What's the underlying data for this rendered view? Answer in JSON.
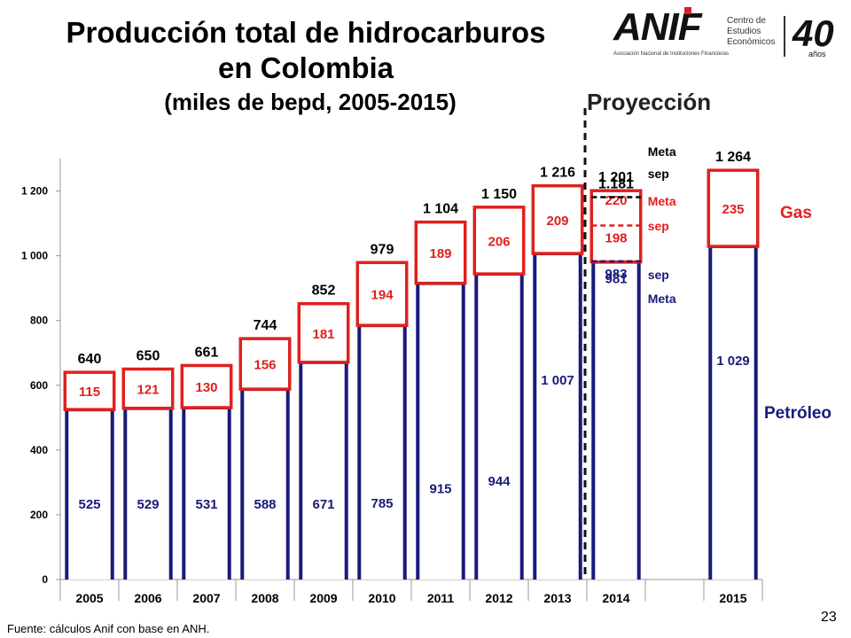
{
  "header": {
    "title_line1": "Producción total de hidrocarburos",
    "title_line2": "en Colombia",
    "subtitle": "(miles de bepd, 2005-2015)",
    "projection_label": "Proyección"
  },
  "logo": {
    "brand": "ANIF",
    "subtitle": "Asociación Nacional de Instituciones Financieras",
    "center_name": "Centro de Estudios Económicos",
    "anniversary": "40",
    "anniversary_unit": "años"
  },
  "footer": {
    "source": "Fuente: cálculos Anif con base en ANH.",
    "page_number": "23"
  },
  "chart_data": {
    "type": "bar",
    "stacked": true,
    "categories": [
      "2005",
      "2006",
      "2007",
      "2008",
      "2009",
      "2010",
      "2011",
      "2012",
      "2013",
      "2014",
      "",
      "2015"
    ],
    "ylim": [
      0,
      1300
    ],
    "yticks": [
      0,
      200,
      400,
      600,
      800,
      1000,
      1200
    ],
    "ytick_labels": [
      "0",
      "200",
      "400",
      "600",
      "800",
      "1 000",
      "1 200"
    ],
    "series": [
      {
        "name": "Petróleo",
        "color": "#1a1a7a",
        "values": [
          525,
          529,
          531,
          588,
          671,
          785,
          915,
          944,
          1007,
          981,
          null,
          1029
        ],
        "labels": [
          "525",
          "529",
          "531",
          "588",
          "671",
          "785",
          "915",
          "944",
          "1 007",
          "981",
          "",
          "1 029"
        ]
      },
      {
        "name": "Gas",
        "color": "#e0201e",
        "values": [
          115,
          121,
          130,
          156,
          181,
          194,
          189,
          206,
          209,
          220,
          null,
          235
        ],
        "labels": [
          "115",
          "121",
          "130",
          "156",
          "181",
          "194",
          "189",
          "206",
          "209",
          "220",
          "",
          "235"
        ]
      }
    ],
    "totals": [
      "640",
      "650",
      "661",
      "744",
      "852",
      "979",
      "1 104",
      "1 150",
      "1 216",
      "1 201",
      "",
      "1 264"
    ],
    "annotations_2014": {
      "oil_sep": 983,
      "oil_sep_label": "983",
      "gas_sep": 198,
      "gas_sep_label": "198",
      "total_sep_label": "1.181",
      "meta_label": "Meta",
      "sep_label": "sep"
    },
    "legend": {
      "gas": "Gas",
      "oil": "Petróleo"
    }
  }
}
